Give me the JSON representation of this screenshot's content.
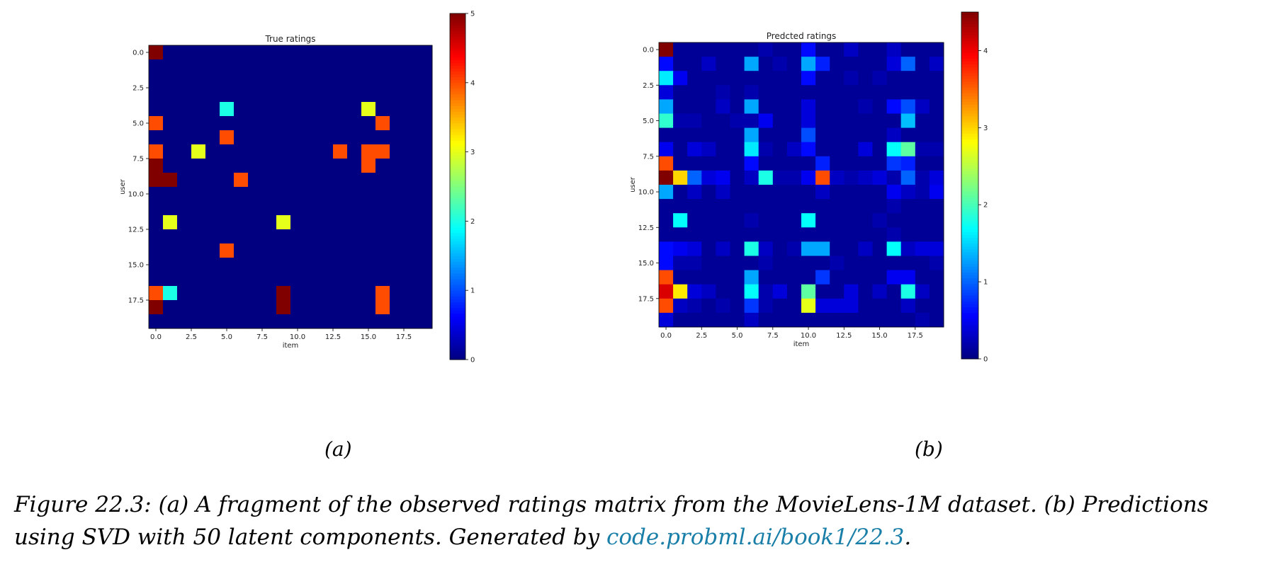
{
  "chart_data": [
    {
      "type": "heatmap",
      "title": "True ratings",
      "xlabel": "item",
      "ylabel": "user",
      "xticks": [
        "0.0",
        "2.5",
        "5.0",
        "7.5",
        "10.0",
        "12.5",
        "15.0",
        "17.5"
      ],
      "yticks": [
        "0.0",
        "2.5",
        "5.0",
        "7.5",
        "10.0",
        "12.5",
        "15.0",
        "17.5"
      ],
      "rows": 20,
      "cols": 20,
      "colorbar_ticks": [
        "0",
        "1",
        "2",
        "3",
        "4",
        "5"
      ],
      "vmin": 0,
      "vmax": 5,
      "colormap": "jet",
      "values": [
        [
          5,
          0,
          0,
          0,
          0,
          0,
          0,
          0,
          0,
          0,
          0,
          0,
          0,
          0,
          0,
          0,
          0,
          0,
          0,
          0
        ],
        [
          0,
          0,
          0,
          0,
          0,
          0,
          0,
          0,
          0,
          0,
          0,
          0,
          0,
          0,
          0,
          0,
          0,
          0,
          0,
          0
        ],
        [
          0,
          0,
          0,
          0,
          0,
          0,
          0,
          0,
          0,
          0,
          0,
          0,
          0,
          0,
          0,
          0,
          0,
          0,
          0,
          0
        ],
        [
          0,
          0,
          0,
          0,
          0,
          0,
          0,
          0,
          0,
          0,
          0,
          0,
          0,
          0,
          0,
          0,
          0,
          0,
          0,
          0
        ],
        [
          0,
          0,
          0,
          0,
          0,
          2,
          0,
          0,
          0,
          0,
          0,
          0,
          0,
          0,
          0,
          3,
          0,
          0,
          0,
          0
        ],
        [
          4,
          0,
          0,
          0,
          0,
          0,
          0,
          0,
          0,
          0,
          0,
          0,
          0,
          0,
          0,
          0,
          4,
          0,
          0,
          0
        ],
        [
          0,
          0,
          0,
          0,
          0,
          4,
          0,
          0,
          0,
          0,
          0,
          0,
          0,
          0,
          0,
          0,
          0,
          0,
          0,
          0
        ],
        [
          4,
          0,
          0,
          3,
          0,
          0,
          0,
          0,
          0,
          0,
          0,
          0,
          0,
          4,
          0,
          4,
          4,
          0,
          0,
          0
        ],
        [
          5,
          0,
          0,
          0,
          0,
          0,
          0,
          0,
          0,
          0,
          0,
          0,
          0,
          0,
          0,
          4,
          0,
          0,
          0,
          0
        ],
        [
          5,
          5,
          0,
          0,
          0,
          0,
          4,
          0,
          0,
          0,
          0,
          0,
          0,
          0,
          0,
          0,
          0,
          0,
          0,
          0
        ],
        [
          0,
          0,
          0,
          0,
          0,
          0,
          0,
          0,
          0,
          0,
          0,
          0,
          0,
          0,
          0,
          0,
          0,
          0,
          0,
          0
        ],
        [
          0,
          0,
          0,
          0,
          0,
          0,
          0,
          0,
          0,
          0,
          0,
          0,
          0,
          0,
          0,
          0,
          0,
          0,
          0,
          0
        ],
        [
          0,
          3,
          0,
          0,
          0,
          0,
          0,
          0,
          0,
          3,
          0,
          0,
          0,
          0,
          0,
          0,
          0,
          0,
          0,
          0
        ],
        [
          0,
          0,
          0,
          0,
          0,
          0,
          0,
          0,
          0,
          0,
          0,
          0,
          0,
          0,
          0,
          0,
          0,
          0,
          0,
          0
        ],
        [
          0,
          0,
          0,
          0,
          0,
          4,
          0,
          0,
          0,
          0,
          0,
          0,
          0,
          0,
          0,
          0,
          0,
          0,
          0,
          0
        ],
        [
          0,
          0,
          0,
          0,
          0,
          0,
          0,
          0,
          0,
          0,
          0,
          0,
          0,
          0,
          0,
          0,
          0,
          0,
          0,
          0
        ],
        [
          0,
          0,
          0,
          0,
          0,
          0,
          0,
          0,
          0,
          0,
          0,
          0,
          0,
          0,
          0,
          0,
          0,
          0,
          0,
          0
        ],
        [
          4,
          2,
          0,
          0,
          0,
          0,
          0,
          0,
          0,
          5,
          0,
          0,
          0,
          0,
          0,
          0,
          4,
          0,
          0,
          0
        ],
        [
          5,
          0,
          0,
          0,
          0,
          0,
          0,
          0,
          0,
          5,
          0,
          0,
          0,
          0,
          0,
          0,
          4,
          0,
          0,
          0
        ],
        [
          0,
          0,
          0,
          0,
          0,
          0,
          0,
          0,
          0,
          0,
          0,
          0,
          0,
          0,
          0,
          0,
          0,
          0,
          0,
          0
        ]
      ]
    },
    {
      "type": "heatmap",
      "title": "Predcted ratings",
      "xlabel": "item",
      "ylabel": "user",
      "xticks": [
        "0.0",
        "2.5",
        "5.0",
        "7.5",
        "10.0",
        "12.5",
        "15.0",
        "17.5"
      ],
      "yticks": [
        "0.0",
        "2.5",
        "5.0",
        "7.5",
        "10.0",
        "12.5",
        "15.0",
        "17.5"
      ],
      "rows": 20,
      "cols": 20,
      "colorbar_ticks": [
        "0",
        "1",
        "2",
        "3",
        "4"
      ],
      "vmin": 0,
      "vmax": 4.5,
      "colormap": "jet",
      "values": [
        [
          4.5,
          0.1,
          0.1,
          0.1,
          0.1,
          0.1,
          0.1,
          0.2,
          0.1,
          0.1,
          0.6,
          0.1,
          0.1,
          0.3,
          0.1,
          0.1,
          0.3,
          0.1,
          0.1,
          0.1
        ],
        [
          0.6,
          0.1,
          0.1,
          0.3,
          0.1,
          0.1,
          1.3,
          0.1,
          0.2,
          0.1,
          1.3,
          0.7,
          0.1,
          0.1,
          0.1,
          0.1,
          0.4,
          1.0,
          0.1,
          0.3
        ],
        [
          1.6,
          0.5,
          0.1,
          0.1,
          0.1,
          0.1,
          0.1,
          0.1,
          0.1,
          0.1,
          0.6,
          0.1,
          0.1,
          0.2,
          0.1,
          0.2,
          0.1,
          0.1,
          0.1,
          0.1
        ],
        [
          0.4,
          0.1,
          0.1,
          0.1,
          0.2,
          0.1,
          0.2,
          0.1,
          0.1,
          0.1,
          0.1,
          0.1,
          0.1,
          0.1,
          0.1,
          0.1,
          0.1,
          0.1,
          0.1,
          0.1
        ],
        [
          1.3,
          0.1,
          0.1,
          0.1,
          0.3,
          0.1,
          1.3,
          0.1,
          0.1,
          0.1,
          0.4,
          0.1,
          0.1,
          0.1,
          0.2,
          0.1,
          0.6,
          0.9,
          0.3,
          0.1
        ],
        [
          1.9,
          0.2,
          0.2,
          0.1,
          0.1,
          0.2,
          0.2,
          0.5,
          0.1,
          0.1,
          0.4,
          0.1,
          0.1,
          0.1,
          0.1,
          0.1,
          0.1,
          1.4,
          0.1,
          0.1
        ],
        [
          0.1,
          0.1,
          0.1,
          0.1,
          0.1,
          0.1,
          1.3,
          0.1,
          0.1,
          0.1,
          0.9,
          0.1,
          0.1,
          0.1,
          0.1,
          0.1,
          0.3,
          0.1,
          0.1,
          0.1
        ],
        [
          0.5,
          0.1,
          0.4,
          0.3,
          0.1,
          0.1,
          1.6,
          0.2,
          0.1,
          0.3,
          0.6,
          0.1,
          0.1,
          0.1,
          0.4,
          0.1,
          1.7,
          2.1,
          0.2,
          0.2
        ],
        [
          3.6,
          0.1,
          0.1,
          0.1,
          0.1,
          0.1,
          0.6,
          0.1,
          0.1,
          0.1,
          0.1,
          0.7,
          0.1,
          0.1,
          0.1,
          0.1,
          0.8,
          0.7,
          0.1,
          0.1
        ],
        [
          4.5,
          3.0,
          1.0,
          0.4,
          0.5,
          0.1,
          0.3,
          1.8,
          0.2,
          0.2,
          0.5,
          3.6,
          0.3,
          0.2,
          0.3,
          0.4,
          0.2,
          1.0,
          0.2,
          0.4
        ],
        [
          1.3,
          0.1,
          0.3,
          0.1,
          0.3,
          0.1,
          0.1,
          0.1,
          0.1,
          0.1,
          0.1,
          0.3,
          0.1,
          0.1,
          0.1,
          0.1,
          0.5,
          0.3,
          0.2,
          0.5
        ],
        [
          0.1,
          0.1,
          0.1,
          0.1,
          0.1,
          0.1,
          0.1,
          0.1,
          0.1,
          0.1,
          0.1,
          0.1,
          0.1,
          0.1,
          0.1,
          0.1,
          0.2,
          0.1,
          0.1,
          0.1
        ],
        [
          0.1,
          1.7,
          0.1,
          0.1,
          0.1,
          0.1,
          0.2,
          0.1,
          0.1,
          0.1,
          1.7,
          0.1,
          0.1,
          0.1,
          0.1,
          0.2,
          0.1,
          0.1,
          0.1,
          0.1
        ],
        [
          0.1,
          0.1,
          0.1,
          0.1,
          0.1,
          0.1,
          0.1,
          0.1,
          0.1,
          0.1,
          0.1,
          0.1,
          0.1,
          0.1,
          0.1,
          0.1,
          0.2,
          0.1,
          0.1,
          0.1
        ],
        [
          0.6,
          0.5,
          0.4,
          0.1,
          0.3,
          0.1,
          1.8,
          0.3,
          0.1,
          0.2,
          1.3,
          1.3,
          0.1,
          0.1,
          0.3,
          0.1,
          1.7,
          0.3,
          0.4,
          0.4
        ],
        [
          0.6,
          0.2,
          0.2,
          0.1,
          0.1,
          0.1,
          0.1,
          0.2,
          0.1,
          0.1,
          0.1,
          0.1,
          0.2,
          0.1,
          0.1,
          0.1,
          0.1,
          0.1,
          0.1,
          0.2
        ],
        [
          3.6,
          0.1,
          0.1,
          0.1,
          0.1,
          0.1,
          1.3,
          0.1,
          0.1,
          0.1,
          0.1,
          0.8,
          0.1,
          0.1,
          0.1,
          0.1,
          0.5,
          0.5,
          0.1,
          0.1
        ],
        [
          4.1,
          2.9,
          0.4,
          0.3,
          0.1,
          0.1,
          1.7,
          0.2,
          0.4,
          0.1,
          2.1,
          0.1,
          0.1,
          0.4,
          0.1,
          0.3,
          0.1,
          1.8,
          0.3,
          0.1
        ],
        [
          3.6,
          0.3,
          0.2,
          0.1,
          0.2,
          0.1,
          0.8,
          0.2,
          0.1,
          0.1,
          2.7,
          0.4,
          0.4,
          0.4,
          0.1,
          0.1,
          0.1,
          0.3,
          0.1,
          0.1
        ],
        [
          0.4,
          0.1,
          0.1,
          0.1,
          0.1,
          0.1,
          0.3,
          0.1,
          0.1,
          0.1,
          0.1,
          0.1,
          0.1,
          0.1,
          0.1,
          0.1,
          0.1,
          0.1,
          0.2,
          0.1
        ]
      ]
    }
  ],
  "panel_labels": [
    "(a)",
    "(b)"
  ],
  "caption": {
    "line1": "Figure 22.3: (a) A fragment of the observed ratings matrix from the MovieLens-1M dataset. (b) Predictions",
    "line2_prefix": "using SVD with 50 latent components. Generated by ",
    "link": "code.probml.ai/book1/22.3",
    "line2_suffix": "."
  }
}
